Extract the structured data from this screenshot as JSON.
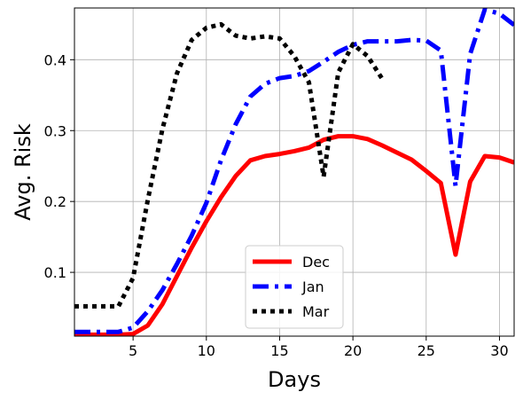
{
  "chart_data": {
    "type": "line",
    "title": "",
    "xlabel": "Days",
    "ylabel": "Avg. Risk",
    "xlim": [
      1,
      31
    ],
    "ylim": [
      0.01,
      0.473
    ],
    "xticks": [
      5,
      10,
      15,
      20,
      25,
      30
    ],
    "yticks": [
      0.1,
      0.2,
      0.3,
      0.4
    ],
    "xtick_labels": [
      "5",
      "10",
      "15",
      "20",
      "25",
      "30"
    ],
    "ytick_labels": [
      "0.1",
      "0.2",
      "0.3",
      "0.4"
    ],
    "grid": true,
    "legend_position": "lower-center",
    "series": [
      {
        "name": "Dec",
        "color": "#ff0000",
        "style": "solid",
        "x": [
          1,
          2,
          3,
          4,
          5,
          6,
          7,
          8,
          9,
          10,
          11,
          12,
          13,
          14,
          15,
          16,
          17,
          18,
          19,
          20,
          21,
          22,
          23,
          24,
          25,
          26,
          27,
          28,
          29,
          30,
          31
        ],
        "y": [
          0.012,
          0.012,
          0.012,
          0.012,
          0.013,
          0.025,
          0.055,
          0.095,
          0.135,
          0.172,
          0.206,
          0.236,
          0.258,
          0.264,
          0.267,
          0.271,
          0.276,
          0.287,
          0.292,
          0.292,
          0.288,
          0.279,
          0.269,
          0.259,
          0.243,
          0.226,
          0.125,
          0.228,
          0.264,
          0.262,
          0.255
        ]
      },
      {
        "name": "Jan",
        "color": "#0000ff",
        "style": "dashdot",
        "x": [
          1,
          2,
          3,
          4,
          5,
          6,
          7,
          8,
          9,
          10,
          11,
          12,
          13,
          14,
          15,
          16,
          17,
          18,
          19,
          20,
          21,
          22,
          23,
          24,
          25,
          26,
          27,
          28,
          29,
          30,
          31
        ],
        "y": [
          0.016,
          0.016,
          0.016,
          0.016,
          0.022,
          0.045,
          0.075,
          0.112,
          0.152,
          0.198,
          0.258,
          0.309,
          0.348,
          0.366,
          0.374,
          0.377,
          0.384,
          0.397,
          0.411,
          0.421,
          0.426,
          0.426,
          0.426,
          0.428,
          0.427,
          0.413,
          0.222,
          0.408,
          0.471,
          0.465,
          0.449
        ]
      },
      {
        "name": "Mar",
        "color": "#000000",
        "style": "dotted",
        "x": [
          1,
          2,
          3,
          4,
          5,
          6,
          7,
          8,
          9,
          10,
          11,
          12,
          13,
          14,
          15,
          16,
          17,
          18,
          19,
          20,
          21,
          22
        ],
        "y": [
          0.052,
          0.052,
          0.052,
          0.052,
          0.092,
          0.202,
          0.302,
          0.381,
          0.428,
          0.445,
          0.45,
          0.434,
          0.43,
          0.433,
          0.43,
          0.405,
          0.368,
          0.235,
          0.382,
          0.422,
          0.405,
          0.373
        ]
      }
    ]
  }
}
